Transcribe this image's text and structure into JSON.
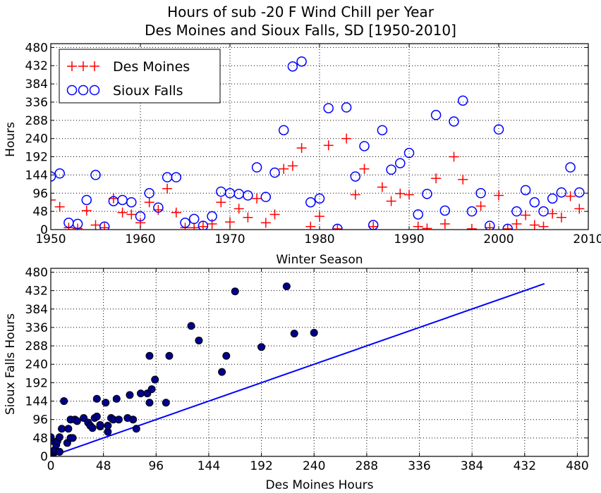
{
  "figure": {
    "title_line1": "Hours of sub -20 F Wind Chill per Year",
    "title_line2": "Des Moines and Sioux Falls, SD [1950-2010]"
  },
  "chart_data": [
    {
      "type": "scatter",
      "xlabel": "Winter Season",
      "ylabel": "Hours",
      "xlim": [
        1950,
        2010
      ],
      "ylim": [
        0,
        490
      ],
      "xticks": [
        1950,
        1960,
        1970,
        1980,
        1990,
        2000,
        2010
      ],
      "yticks": [
        0,
        48,
        96,
        144,
        192,
        240,
        288,
        336,
        384,
        432,
        480
      ],
      "grid": true,
      "legend": "top-left",
      "series": [
        {
          "name": "Des Moines",
          "marker": "plus",
          "color": "#ff0000",
          "x": [
            1950,
            1951,
            1952,
            1953,
            1954,
            1955,
            1956,
            1957,
            1958,
            1959,
            1960,
            1961,
            1962,
            1963,
            1964,
            1965,
            1966,
            1967,
            1968,
            1969,
            1970,
            1971,
            1972,
            1973,
            1974,
            1975,
            1976,
            1977,
            1978,
            1979,
            1980,
            1981,
            1982,
            1983,
            1984,
            1985,
            1986,
            1987,
            1988,
            1989,
            1990,
            1991,
            1992,
            1993,
            1994,
            1995,
            1996,
            1997,
            1998,
            1999,
            2000,
            2001,
            2002,
            2003,
            2004,
            2005,
            2006,
            2007,
            2008,
            2009
          ],
          "y": [
            78,
            60,
            5,
            3,
            50,
            12,
            5,
            82,
            45,
            40,
            18,
            72,
            52,
            108,
            45,
            5,
            5,
            8,
            15,
            72,
            20,
            55,
            32,
            82,
            18,
            40,
            160,
            168,
            215,
            8,
            35,
            222,
            2,
            240,
            92,
            160,
            8,
            112,
            75,
            95,
            92,
            8,
            3,
            135,
            15,
            192,
            132,
            2,
            62,
            5,
            90,
            2,
            15,
            38,
            12,
            8,
            42,
            32,
            88,
            55
          ]
        },
        {
          "name": "Sioux Falls",
          "marker": "circle",
          "color": "#0000ff",
          "x": [
            1950,
            1951,
            1952,
            1953,
            1954,
            1955,
            1956,
            1957,
            1958,
            1959,
            1960,
            1961,
            1962,
            1963,
            1964,
            1965,
            1966,
            1967,
            1968,
            1969,
            1970,
            1971,
            1972,
            1973,
            1974,
            1975,
            1976,
            1977,
            1978,
            1979,
            1980,
            1981,
            1982,
            1983,
            1984,
            1985,
            1986,
            1987,
            1988,
            1989,
            1990,
            1991,
            1992,
            1993,
            1994,
            1995,
            1996,
            1997,
            1998,
            1999,
            2000,
            2001,
            2002,
            2003,
            2004,
            2005,
            2006,
            2007,
            2008,
            2009
          ],
          "y": [
            140,
            148,
            18,
            15,
            78,
            144,
            8,
            75,
            78,
            72,
            35,
            96,
            58,
            138,
            138,
            18,
            28,
            10,
            35,
            100,
            96,
            94,
            90,
            164,
            86,
            150,
            262,
            430,
            443,
            72,
            82,
            320,
            2,
            322,
            140,
            220,
            12,
            262,
            158,
            175,
            202,
            40,
            94,
            302,
            50,
            285,
            340,
            48,
            96,
            10,
            264,
            2,
            48,
            104,
            72,
            48,
            82,
            98,
            164,
            98
          ]
        }
      ]
    },
    {
      "type": "scatter",
      "xlabel": "Des Moines Hours",
      "ylabel": "Sioux Falls Hours",
      "xlim": [
        0,
        490
      ],
      "ylim": [
        0,
        490
      ],
      "xticks": [
        0,
        48,
        96,
        144,
        192,
        240,
        288,
        336,
        384,
        432,
        480
      ],
      "yticks": [
        0,
        48,
        96,
        144,
        192,
        240,
        288,
        336,
        384,
        432,
        480
      ],
      "grid": true,
      "point_color": "#00008b",
      "reference_line": {
        "x": [
          0,
          450
        ],
        "y": [
          0,
          450
        ],
        "color": "#0000ff"
      },
      "points": [
        [
          0,
          40
        ],
        [
          0,
          50
        ],
        [
          1,
          1
        ],
        [
          2,
          5
        ],
        [
          3,
          12
        ],
        [
          3,
          15
        ],
        [
          4,
          18
        ],
        [
          5,
          30
        ],
        [
          6,
          40
        ],
        [
          8,
          50
        ],
        [
          8,
          12
        ],
        [
          10,
          72
        ],
        [
          12,
          144
        ],
        [
          15,
          35
        ],
        [
          16,
          72
        ],
        [
          18,
          96
        ],
        [
          18,
          48
        ],
        [
          20,
          48
        ],
        [
          22,
          96
        ],
        [
          24,
          92
        ],
        [
          30,
          100
        ],
        [
          34,
          88
        ],
        [
          36,
          80
        ],
        [
          38,
          74
        ],
        [
          40,
          100
        ],
        [
          42,
          104
        ],
        [
          42,
          150
        ],
        [
          45,
          78
        ],
        [
          45,
          82
        ],
        [
          50,
          140
        ],
        [
          52,
          64
        ],
        [
          52,
          80
        ],
        [
          55,
          100
        ],
        [
          57,
          96
        ],
        [
          60,
          150
        ],
        [
          62,
          96
        ],
        [
          70,
          100
        ],
        [
          72,
          160
        ],
        [
          75,
          96
        ],
        [
          78,
          72
        ],
        [
          82,
          164
        ],
        [
          88,
          164
        ],
        [
          90,
          262
        ],
        [
          90,
          140
        ],
        [
          92,
          175
        ],
        [
          95,
          200
        ],
        [
          105,
          140
        ],
        [
          108,
          262
        ],
        [
          128,
          340
        ],
        [
          135,
          302
        ],
        [
          156,
          220
        ],
        [
          160,
          262
        ],
        [
          168,
          430
        ],
        [
          192,
          285
        ],
        [
          215,
          443
        ],
        [
          222,
          320
        ],
        [
          240,
          322
        ]
      ]
    }
  ]
}
